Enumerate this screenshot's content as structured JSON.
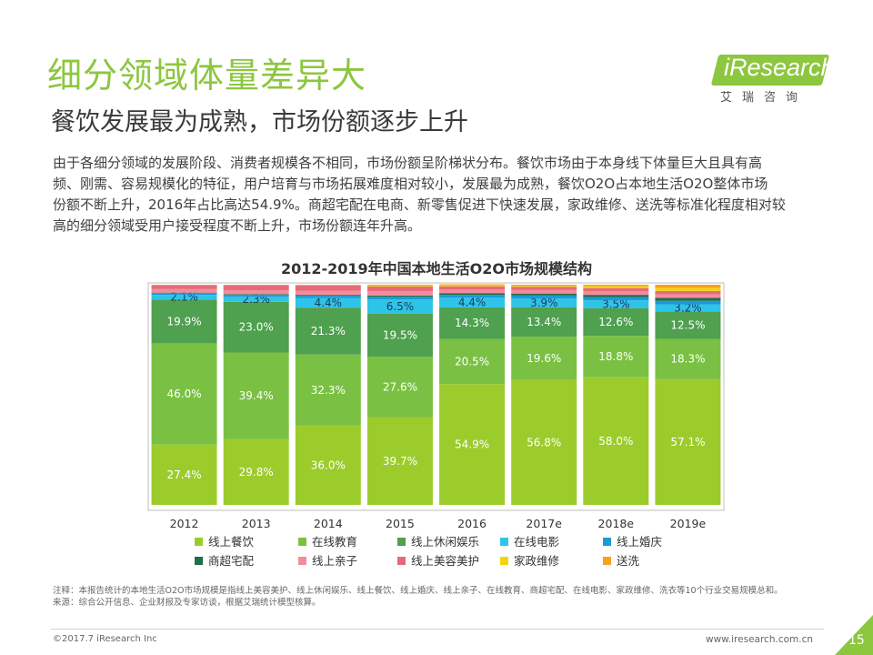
{
  "slide": {
    "title": "细分领域体量差异大",
    "subtitle": "餐饮发展最为成熟，市场份额逐步上升",
    "paragraph_lines": [
      "由于各细分领域的发展阶段、消费者规模各不相同，市场份额呈阶梯状分布。餐饮市场由于本身线下体量巨大且具有高",
      "频、刚需、容易规模化的特征，用户培育与市场拓展难度相对较小，发展最为成熟，餐饮O2O占本地生活O2O整体市场",
      "份额不断上升，2016年占比高达54.9%。商超宅配在电商、新零售促进下快速发展，家政维修、送洗等标准化程度相对较",
      "高的细分领域受用户接受程度不断上升，市场份额连年升高。"
    ],
    "logo_text": "iResearch",
    "logo_cn": "艾瑞咨询",
    "note": "注释：本报告统计的本地生活O2O市场规模是指线上美容美护、线上休闲娱乐、线上餐饮、线上婚庆、线上亲子、在线教育、商超宅配、在线电影、家政维修、洗衣等10个行业交易规模总和。",
    "source": "来源：综合公开信息、企业财报及专家访谈，根据艾瑞统计模型核算。",
    "copyright": "©2017.7 iResearch Inc",
    "website": "www.iresearch.com.cn",
    "page_number": "15"
  },
  "chart_data": {
    "type": "bar",
    "stacked": true,
    "title": "2012-2019年中国本地生活O2O市场规模结构",
    "categories": [
      "2012",
      "2013",
      "2014",
      "2015",
      "2016",
      "2017e",
      "2018e",
      "2019e"
    ],
    "ylim": [
      0,
      100
    ],
    "legend_position": "bottom",
    "series": [
      {
        "name": "线上餐饮",
        "color": "#9ccc2c",
        "values": [
          27.4,
          29.8,
          36.0,
          39.7,
          54.9,
          56.8,
          58.0,
          57.1
        ],
        "labels": [
          "27.4%",
          "29.8%",
          "36.0%",
          "39.7%",
          "54.9%",
          "56.8%",
          "58.0%",
          "57.1%"
        ]
      },
      {
        "name": "在线教育",
        "color": "#7ac143",
        "values": [
          46.0,
          39.4,
          32.3,
          27.6,
          20.5,
          19.6,
          18.8,
          18.3
        ],
        "labels": [
          "46.0%",
          "39.4%",
          "32.3%",
          "27.6%",
          "20.5%",
          "19.6%",
          "18.8%",
          "18.3%"
        ]
      },
      {
        "name": "线上休闲娱乐",
        "color": "#4fa04f",
        "values": [
          19.9,
          23.0,
          21.3,
          19.5,
          14.3,
          13.4,
          12.6,
          12.5
        ],
        "labels": [
          "19.9%",
          "23.0%",
          "21.3%",
          "19.5%",
          "14.3%",
          "13.4%",
          "12.6%",
          "12.5%"
        ]
      },
      {
        "name": "在线电影",
        "color": "#2ec4e8",
        "values": [
          2.1,
          2.3,
          4.4,
          6.5,
          4.4,
          3.9,
          3.5,
          3.2
        ],
        "labels": [
          "2.1%",
          "2.3%",
          "4.4%",
          "6.5%",
          "4.4%",
          "3.9%",
          "3.5%",
          "3.2%"
        ]
      },
      {
        "name": "线上婚庆",
        "color": "#1a9bd7",
        "values": [
          0.8,
          0.9,
          1.0,
          1.2,
          1.3,
          1.4,
          1.5,
          1.6
        ]
      },
      {
        "name": "商超宅配",
        "color": "#1f6f4a",
        "values": [
          0.2,
          0.3,
          0.4,
          0.6,
          0.8,
          0.9,
          1.0,
          1.3
        ]
      },
      {
        "name": "线上亲子",
        "color": "#f28c9c",
        "values": [
          1.6,
          1.8,
          1.9,
          1.9,
          1.6,
          1.6,
          1.6,
          1.7
        ]
      },
      {
        "name": "线上美容美护",
        "color": "#e66a7a",
        "values": [
          1.8,
          2.3,
          2.3,
          2.2,
          1.5,
          1.5,
          1.5,
          1.5
        ]
      },
      {
        "name": "家政维修",
        "color": "#f5d40f",
        "values": [
          0.1,
          0.1,
          0.2,
          0.4,
          0.4,
          0.5,
          0.9,
          1.4
        ]
      },
      {
        "name": "送洗",
        "color": "#f7a21b",
        "values": [
          0.1,
          0.1,
          0.2,
          0.4,
          0.5,
          0.4,
          0.6,
          1.4
        ]
      }
    ]
  }
}
